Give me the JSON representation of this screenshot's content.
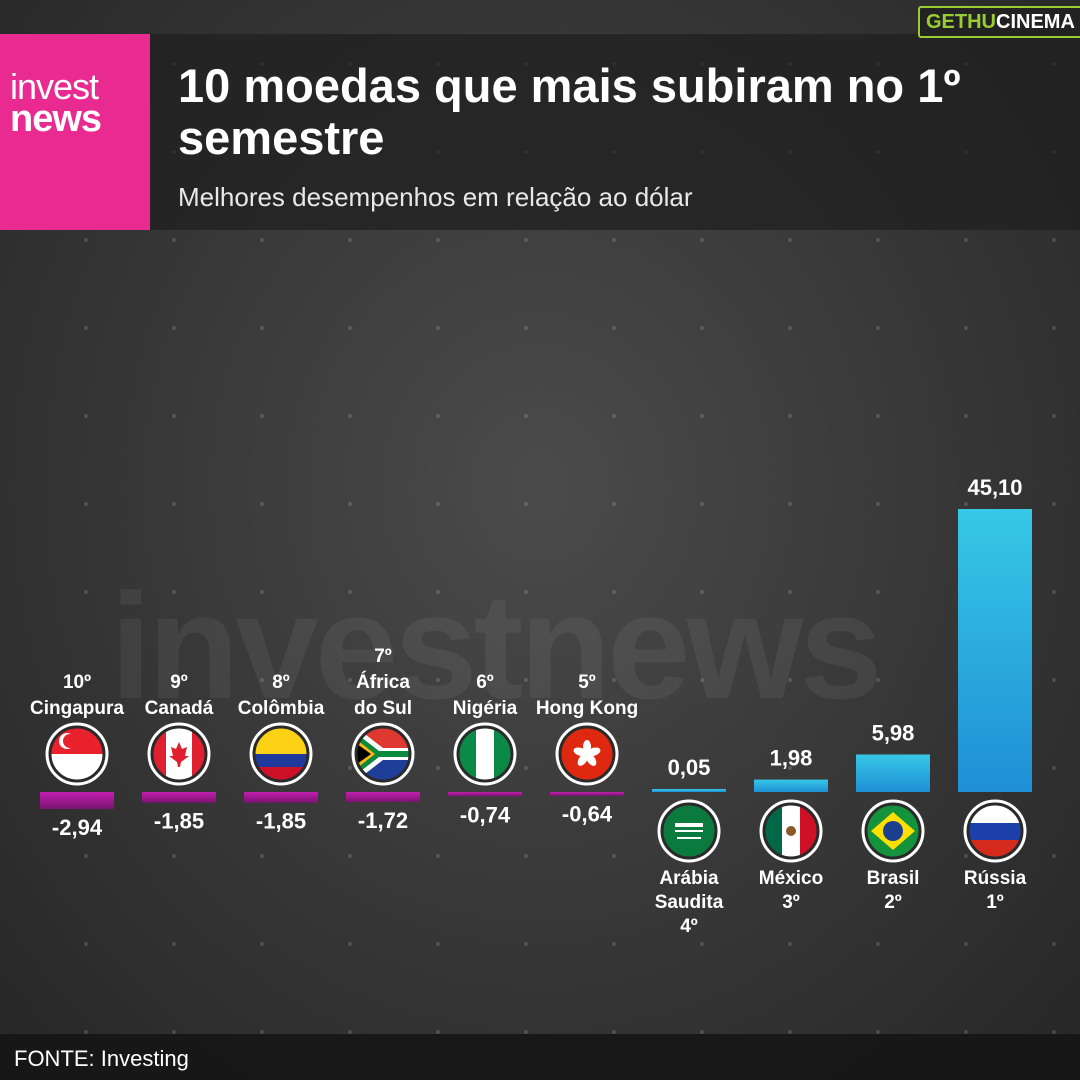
{
  "header": {
    "logo_line1": "invest",
    "logo_line2": "news",
    "title": "10 moedas que mais subiram no 1º semestre",
    "subtitle": "Melhores desempenhos em relação ao dólar"
  },
  "corner_tag": {
    "part1": "GETHU",
    "part2": "CINEMA"
  },
  "watermark": "investnews",
  "footer": {
    "source": "FONTE: Investing"
  },
  "colors": {
    "negative_bar": "#b01a9c",
    "positive_bar": "#24a4dc",
    "brand_pink": "#e82a91"
  },
  "chart_data": {
    "type": "bar",
    "title": "10 moedas que mais subiram no 1º semestre",
    "subtitle": "Melhores desempenhos em relação ao dólar",
    "categories": [
      "Cingapura",
      "Canadá",
      "Colômbia",
      "África do Sul",
      "Nigéria",
      "Hong Kong",
      "Arábia Saudita",
      "México",
      "Brasil",
      "Rússia"
    ],
    "ranks": [
      "10º",
      "9º",
      "8º",
      "7º",
      "6º",
      "5º",
      "4º",
      "3º",
      "2º",
      "1º"
    ],
    "flag_icons": [
      "singapore-flag-icon",
      "canada-flag-icon",
      "colombia-flag-icon",
      "south-africa-flag-icon",
      "nigeria-flag-icon",
      "hong-kong-flag-icon",
      "saudi-arabia-flag-icon",
      "mexico-flag-icon",
      "brazil-flag-icon",
      "russia-flag-icon"
    ],
    "values": [
      -2.94,
      -1.85,
      -1.85,
      -1.72,
      -0.74,
      -0.64,
      0.05,
      1.98,
      5.98,
      45.1
    ],
    "value_labels": [
      "-2,94",
      "-1,85",
      "-1,85",
      "-1,72",
      "-0,74",
      "-0,64",
      "0,05",
      "1,98",
      "5,98",
      "45,10"
    ],
    "xlabel": "",
    "ylabel": "",
    "unit": "%",
    "grid": false,
    "legend": "none"
  }
}
